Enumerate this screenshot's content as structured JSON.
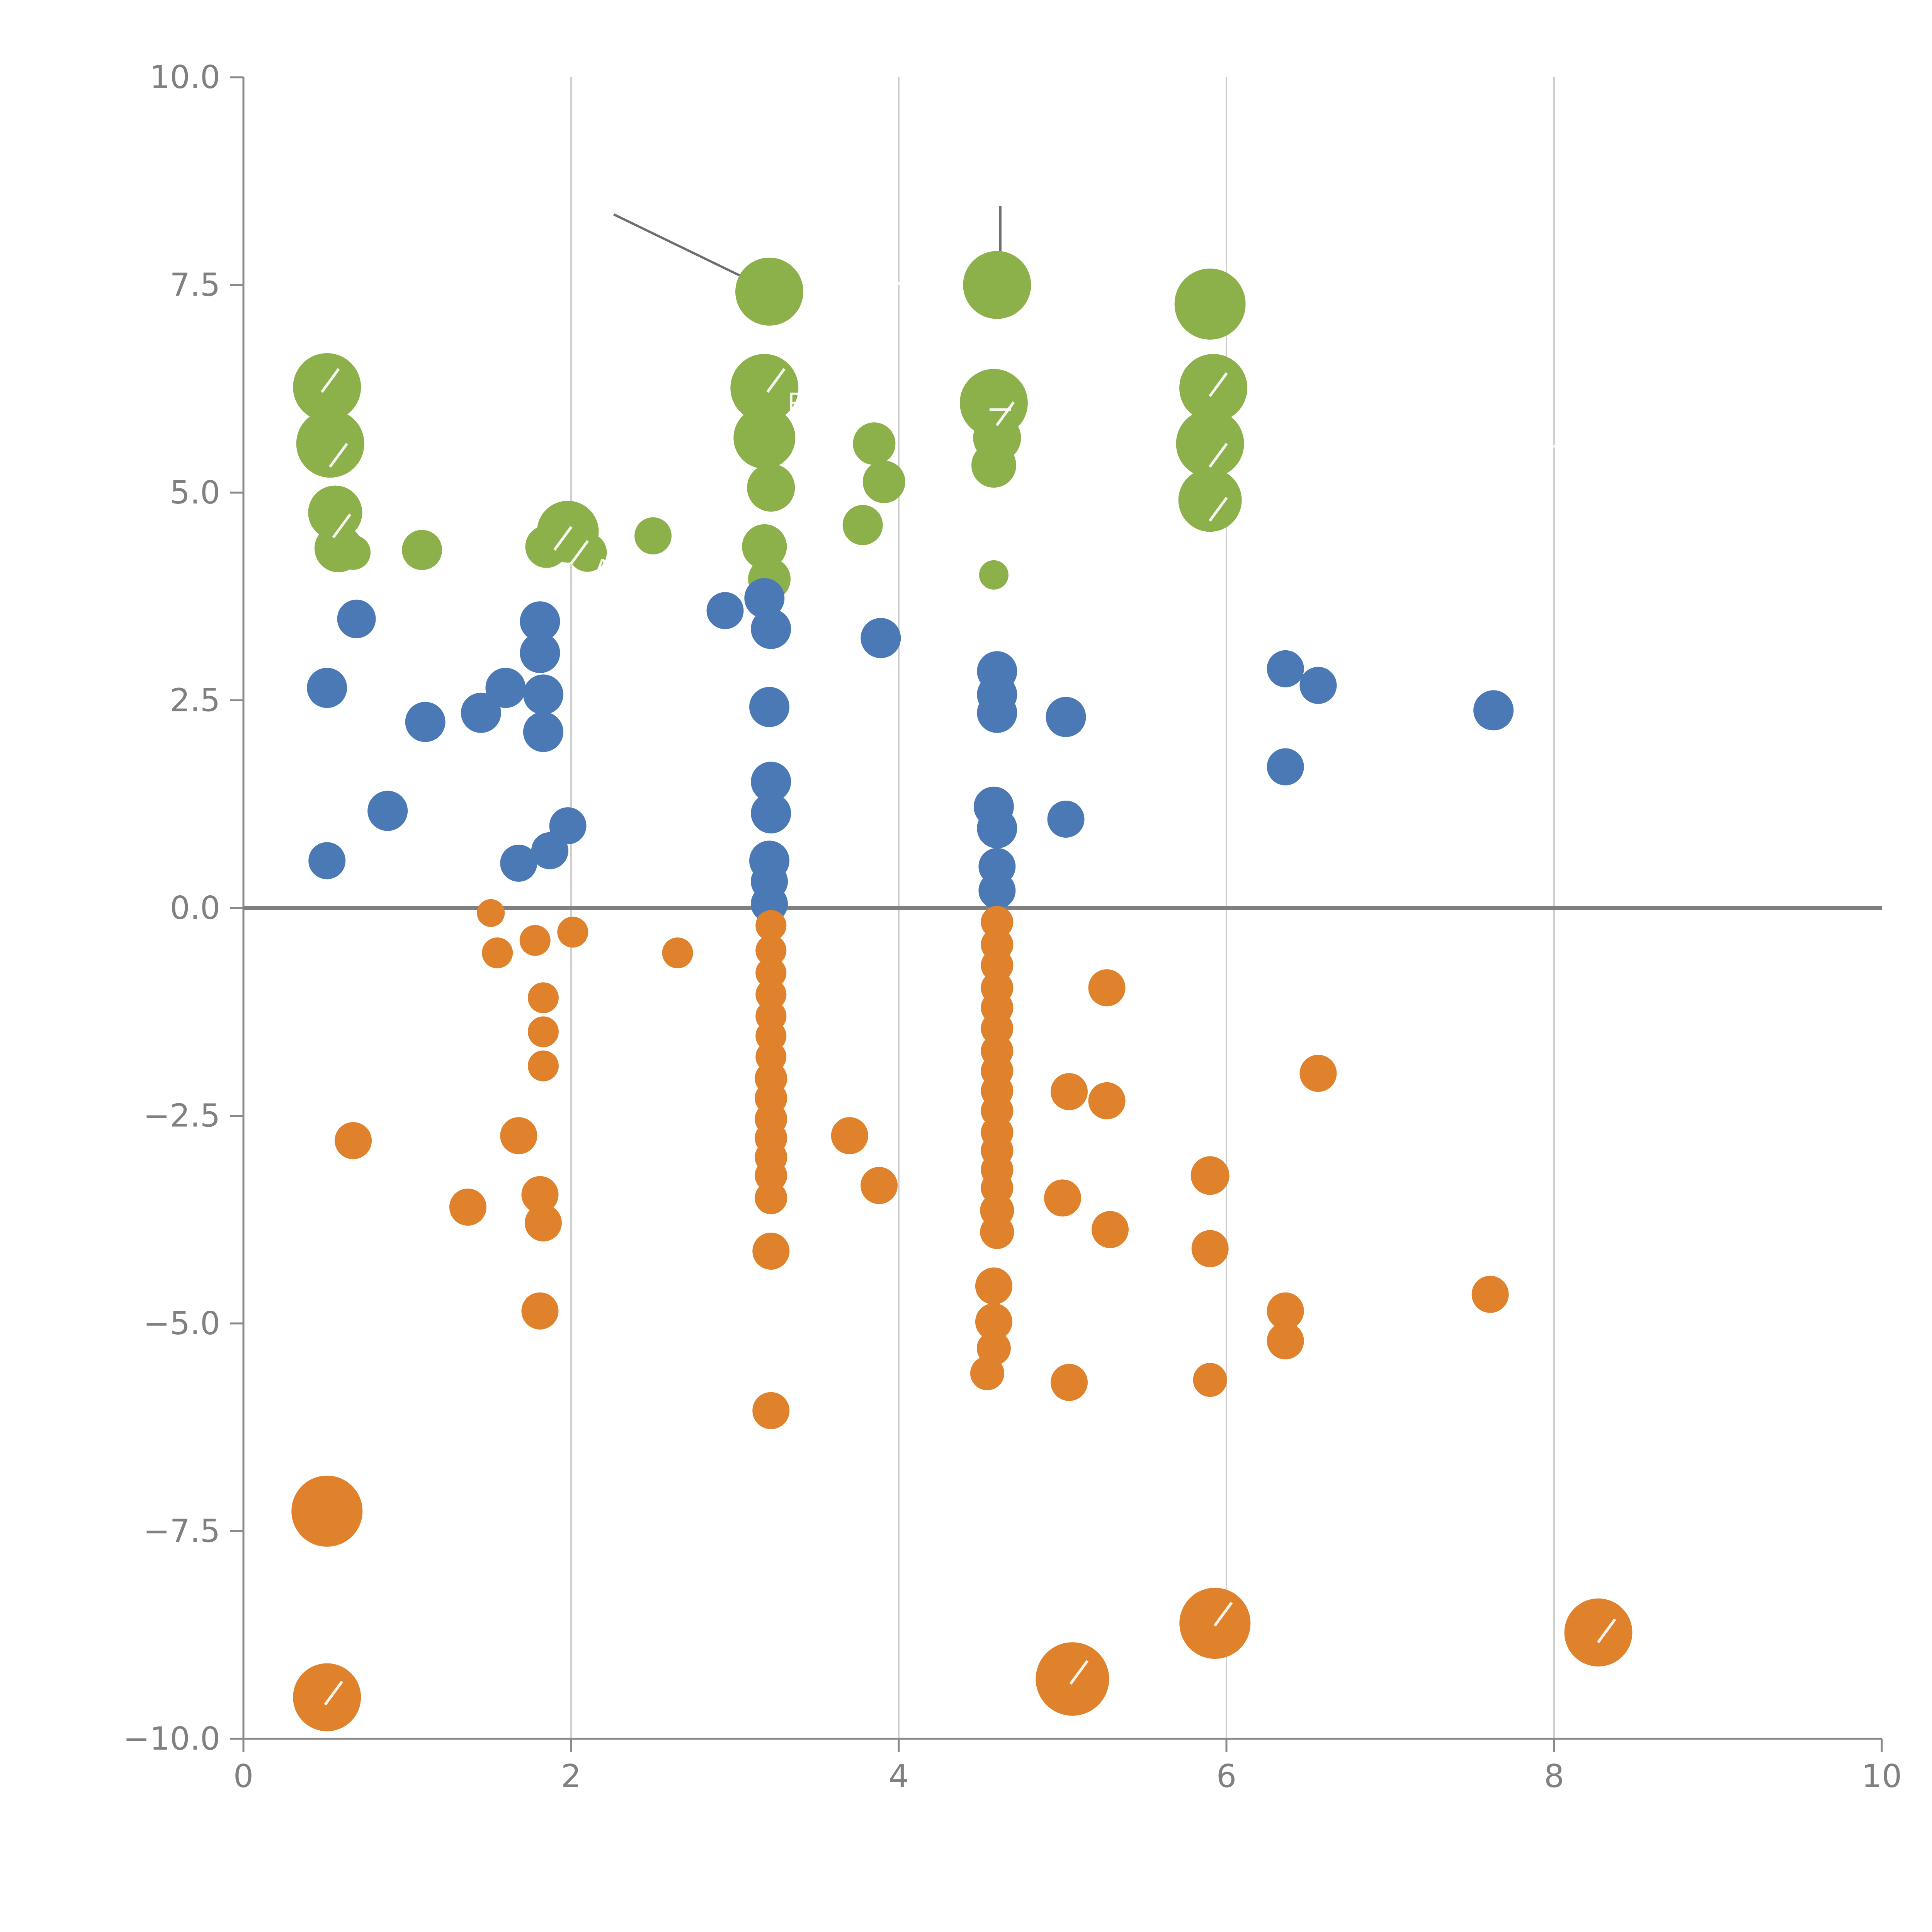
{
  "figure": {
    "background": "#ffffff",
    "axis_color": "#8a8a8a",
    "tick_label_color": "#808080",
    "grid_color": "#cdcdcd",
    "zero_line_color": "#7f7f7f",
    "annotation_line_color": "#6e6e6e"
  },
  "chart_data": {
    "type": "scatter",
    "title": "",
    "xlabel": "",
    "ylabel": "",
    "xlim": [
      0,
      10
    ],
    "ylim": [
      -10,
      10
    ],
    "x_ticks": [
      0,
      2,
      4,
      6,
      8,
      10
    ],
    "x_tick_labels": [
      "0",
      "2",
      "4",
      "6",
      "8",
      "10"
    ],
    "y_ticks": [
      10.0,
      7.5,
      5.0,
      2.5,
      0.0,
      -2.5,
      -5.0,
      -7.5,
      -10.0
    ],
    "y_tick_labels": [
      "10.0",
      "7.5",
      "5.0",
      "2.5",
      "0.0",
      "−2.5",
      "−5.0",
      "−7.5",
      "−10.0"
    ],
    "grid": {
      "vertical_at": [
        2,
        4,
        6,
        8
      ],
      "horizontal": false
    },
    "zero_line_y": 0,
    "legend": "none",
    "series": [
      {
        "name": "green",
        "color": "#8CB04A",
        "points": [
          [
            0.51,
            6.27,
            88
          ],
          [
            0.53,
            5.59,
            88
          ],
          [
            0.56,
            4.76,
            70
          ],
          [
            0.58,
            4.33,
            62
          ],
          [
            0.67,
            4.28,
            45
          ],
          [
            1.09,
            4.31,
            52
          ],
          [
            1.98,
            4.53,
            80
          ],
          [
            1.85,
            4.35,
            55
          ],
          [
            2.1,
            4.28,
            50
          ],
          [
            2.5,
            4.48,
            48
          ],
          [
            3.21,
            7.42,
            88
          ],
          [
            3.18,
            6.26,
            88
          ],
          [
            3.18,
            5.66,
            80
          ],
          [
            3.22,
            5.06,
            62
          ],
          [
            3.18,
            4.35,
            58
          ],
          [
            3.21,
            3.96,
            55
          ],
          [
            3.85,
            5.59,
            55
          ],
          [
            3.91,
            5.13,
            55
          ],
          [
            3.78,
            4.61,
            52
          ],
          [
            4.6,
            7.5,
            88
          ],
          [
            4.58,
            6.08,
            88
          ],
          [
            4.6,
            5.66,
            62
          ],
          [
            4.58,
            5.33,
            58
          ],
          [
            4.58,
            4.01,
            38
          ],
          [
            5.9,
            7.27,
            92
          ],
          [
            5.92,
            6.26,
            88
          ],
          [
            5.9,
            5.59,
            88
          ],
          [
            5.9,
            4.91,
            82
          ]
        ]
      },
      {
        "name": "blue",
        "color": "#4A79B5",
        "points": [
          [
            0.51,
            2.65,
            52
          ],
          [
            0.51,
            0.57,
            48
          ],
          [
            0.69,
            3.48,
            50
          ],
          [
            0.88,
            1.17,
            52
          ],
          [
            1.11,
            2.24,
            52
          ],
          [
            1.45,
            2.35,
            52
          ],
          [
            1.6,
            2.65,
            52
          ],
          [
            1.68,
            0.54,
            48
          ],
          [
            1.81,
            3.45,
            52
          ],
          [
            1.81,
            3.07,
            52
          ],
          [
            1.83,
            2.57,
            52
          ],
          [
            1.83,
            2.12,
            52
          ],
          [
            1.87,
            0.69,
            48
          ],
          [
            1.98,
            0.99,
            48
          ],
          [
            2.94,
            3.58,
            48
          ],
          [
            3.18,
            3.73,
            52
          ],
          [
            3.22,
            3.36,
            52
          ],
          [
            3.21,
            2.42,
            52
          ],
          [
            3.22,
            1.52,
            52
          ],
          [
            3.22,
            1.14,
            52
          ],
          [
            3.21,
            0.57,
            52
          ],
          [
            3.21,
            0.32,
            48
          ],
          [
            3.21,
            0.05,
            48
          ],
          [
            3.89,
            3.25,
            52
          ],
          [
            4.6,
            2.85,
            52
          ],
          [
            4.6,
            2.57,
            52
          ],
          [
            4.6,
            2.35,
            52
          ],
          [
            4.58,
            1.22,
            52
          ],
          [
            4.6,
            0.96,
            52
          ],
          [
            4.6,
            0.5,
            48
          ],
          [
            4.6,
            0.21,
            48
          ],
          [
            5.02,
            2.3,
            52
          ],
          [
            5.02,
            1.07,
            48
          ],
          [
            6.36,
            2.88,
            48
          ],
          [
            6.56,
            2.68,
            48
          ],
          [
            6.36,
            1.7,
            48
          ],
          [
            7.63,
            2.38,
            52
          ]
        ]
      },
      {
        "name": "orange",
        "color": "#E0812C",
        "points": [
          [
            1.51,
            -0.06,
            36
          ],
          [
            1.55,
            -0.54,
            40
          ],
          [
            1.78,
            -0.39,
            40
          ],
          [
            2.01,
            -0.29,
            40
          ],
          [
            2.65,
            -0.54,
            40
          ],
          [
            1.83,
            -1.08,
            40
          ],
          [
            1.83,
            -1.49,
            40
          ],
          [
            1.83,
            -1.9,
            40
          ],
          [
            3.22,
            -0.21,
            40
          ],
          [
            3.22,
            -0.51,
            40
          ],
          [
            3.22,
            -0.78,
            40
          ],
          [
            3.22,
            -1.04,
            40
          ],
          [
            3.22,
            -1.3,
            40
          ],
          [
            3.22,
            -1.54,
            40
          ],
          [
            3.22,
            -1.79,
            40
          ],
          [
            3.22,
            -2.05,
            42
          ],
          [
            3.22,
            -2.29,
            42
          ],
          [
            3.22,
            -2.54,
            42
          ],
          [
            3.22,
            -2.77,
            42
          ],
          [
            3.22,
            -3.0,
            42
          ],
          [
            3.22,
            -3.22,
            42
          ],
          [
            3.22,
            -3.49,
            42
          ],
          [
            3.22,
            -4.13,
            48
          ],
          [
            3.22,
            -6.05,
            48
          ],
          [
            4.6,
            -0.17,
            42
          ],
          [
            4.6,
            -0.44,
            42
          ],
          [
            4.6,
            -0.69,
            42
          ],
          [
            4.6,
            -0.96,
            42
          ],
          [
            4.6,
            -1.2,
            42
          ],
          [
            4.6,
            -1.45,
            42
          ],
          [
            4.6,
            -1.72,
            42
          ],
          [
            4.6,
            -1.96,
            42
          ],
          [
            4.6,
            -2.2,
            42
          ],
          [
            4.6,
            -2.44,
            42
          ],
          [
            4.6,
            -2.7,
            42
          ],
          [
            4.6,
            -2.92,
            42
          ],
          [
            4.6,
            -3.15,
            42
          ],
          [
            4.6,
            -3.37,
            42
          ],
          [
            4.6,
            -3.64,
            44
          ],
          [
            4.6,
            -3.9,
            44
          ],
          [
            4.58,
            -4.55,
            48
          ],
          [
            4.58,
            -4.98,
            48
          ],
          [
            4.58,
            -5.3,
            44
          ],
          [
            4.54,
            -5.6,
            44
          ],
          [
            0.67,
            -2.8,
            48
          ],
          [
            1.37,
            -3.6,
            48
          ],
          [
            1.68,
            -2.74,
            48
          ],
          [
            1.81,
            -3.45,
            48
          ],
          [
            1.83,
            -3.79,
            48
          ],
          [
            1.81,
            -4.85,
            48
          ],
          [
            3.7,
            -2.74,
            48
          ],
          [
            3.88,
            -3.34,
            48
          ],
          [
            5.04,
            -2.21,
            48
          ],
          [
            5.27,
            -2.32,
            48
          ],
          [
            5.27,
            -0.96,
            48
          ],
          [
            5.0,
            -3.49,
            48
          ],
          [
            5.29,
            -3.87,
            48
          ],
          [
            5.04,
            -5.71,
            48
          ],
          [
            5.9,
            -3.22,
            50
          ],
          [
            5.9,
            -4.1,
            48
          ],
          [
            5.9,
            -5.68,
            44
          ],
          [
            6.36,
            -4.85,
            48
          ],
          [
            6.36,
            -5.21,
            48
          ],
          [
            6.56,
            -1.99,
            48
          ],
          [
            7.61,
            -4.65,
            48
          ],
          [
            0.51,
            -7.26,
            92
          ],
          [
            0.51,
            -9.5,
            88
          ],
          [
            5.06,
            -9.28,
            95
          ],
          [
            5.93,
            -8.61,
            92
          ],
          [
            8.27,
            -8.72,
            88
          ]
        ]
      }
    ],
    "annotations": {
      "lines": [
        {
          "x1": 2.26,
          "y1": 8.35,
          "x2": 3.17,
          "y2": 7.48
        },
        {
          "x1": 4.62,
          "y1": 8.45,
          "x2": 4.62,
          "y2": 7.58
        }
      ],
      "labels": [
        {
          "x": 3.32,
          "y": 5.98,
          "text": "P",
          "color": "#ffffff"
        },
        {
          "x": 2.14,
          "y": 3.98,
          "text": "A",
          "color": "#ffffff"
        }
      ],
      "white_slashes": [
        [
          0.53,
          6.35
        ],
        [
          0.58,
          5.45
        ],
        [
          0.6,
          4.6
        ],
        [
          1.95,
          4.45
        ],
        [
          2.05,
          4.28
        ],
        [
          3.25,
          6.35
        ],
        [
          4.65,
          5.95
        ],
        [
          5.95,
          6.3
        ],
        [
          5.95,
          5.45
        ],
        [
          5.95,
          4.8
        ],
        [
          0.55,
          -9.45
        ],
        [
          5.1,
          -9.2
        ],
        [
          5.98,
          -8.5
        ],
        [
          8.32,
          -8.7
        ]
      ],
      "white_dashes": [
        [
          3.95,
          7.52
        ],
        [
          7.97,
          5.56
        ],
        [
          4.62,
          6.0
        ]
      ]
    }
  }
}
